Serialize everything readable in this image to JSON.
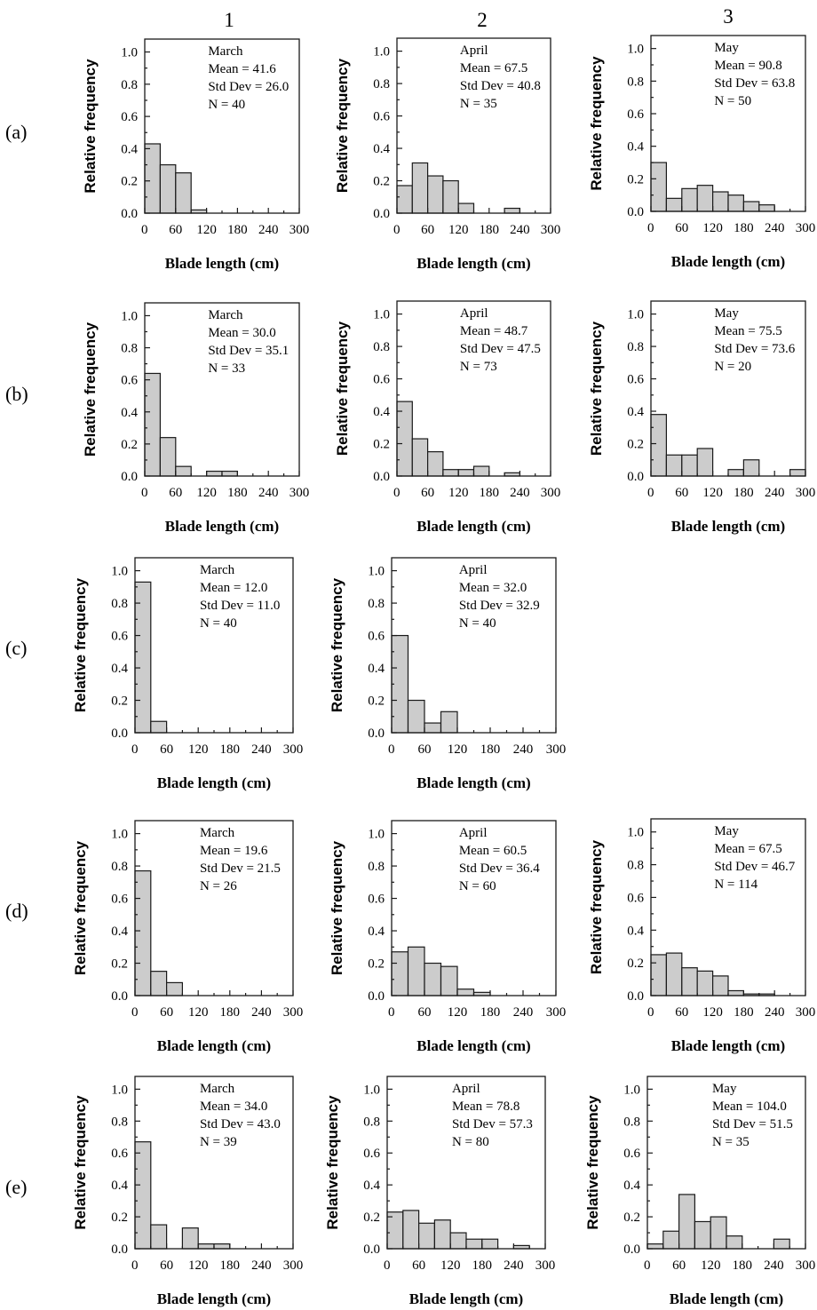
{
  "column_labels": [
    "1",
    "2",
    "3"
  ],
  "row_labels": [
    "(a)",
    "(b)",
    "(c)",
    "(d)",
    "(e)"
  ],
  "axis_text": {
    "ylabel": "Relative frequency",
    "xlabel": "Blade length (cm)",
    "y_ticks": [
      "0.0",
      "0.2",
      "0.4",
      "0.6",
      "0.8",
      "1.0"
    ],
    "x_ticks": [
      "0",
      "60",
      "120",
      "180",
      "240",
      "300"
    ]
  },
  "chart_data": [
    {
      "type": "bar",
      "row": "(a)",
      "column": "1",
      "annotation": [
        "March",
        "Mean = 41.6",
        "Std Dev = 26.0",
        "N = 40"
      ],
      "bin_width": 30,
      "x_range": [
        0,
        300
      ],
      "ylim": [
        0,
        1.08
      ],
      "values": [
        0.43,
        0.3,
        0.25,
        0.02,
        0,
        0,
        0,
        0,
        0,
        0
      ]
    },
    {
      "type": "bar",
      "row": "(a)",
      "column": "2",
      "annotation": [
        "April",
        "Mean = 67.5",
        "Std Dev = 40.8",
        "N = 35"
      ],
      "bin_width": 30,
      "x_range": [
        0,
        300
      ],
      "ylim": [
        0,
        1.08
      ],
      "values": [
        0.17,
        0.31,
        0.23,
        0.2,
        0.06,
        0,
        0,
        0.03,
        0,
        0
      ]
    },
    {
      "type": "bar",
      "row": "(a)",
      "column": "3",
      "annotation": [
        "May",
        "Mean = 90.8",
        "Std Dev = 63.8",
        "N = 50"
      ],
      "bin_width": 30,
      "x_range": [
        0,
        300
      ],
      "ylim": [
        0,
        1.08
      ],
      "values": [
        0.3,
        0.08,
        0.14,
        0.16,
        0.12,
        0.1,
        0.06,
        0.04,
        0,
        0
      ]
    },
    {
      "type": "bar",
      "row": "(b)",
      "column": "1",
      "annotation": [
        "March",
        "Mean = 30.0",
        "Std Dev = 35.1",
        "N = 33"
      ],
      "bin_width": 30,
      "x_range": [
        0,
        300
      ],
      "ylim": [
        0,
        1.08
      ],
      "values": [
        0.64,
        0.24,
        0.06,
        0,
        0.03,
        0.03,
        0,
        0,
        0,
        0
      ]
    },
    {
      "type": "bar",
      "row": "(b)",
      "column": "2",
      "annotation": [
        "April",
        "Mean = 48.7",
        "Std Dev = 47.5",
        "N = 73"
      ],
      "bin_width": 30,
      "x_range": [
        0,
        300
      ],
      "ylim": [
        0,
        1.08
      ],
      "values": [
        0.46,
        0.23,
        0.15,
        0.04,
        0.04,
        0.06,
        0,
        0.02,
        0,
        0
      ]
    },
    {
      "type": "bar",
      "row": "(b)",
      "column": "3",
      "annotation": [
        "May",
        "Mean = 75.5",
        "Std Dev = 73.6",
        "N = 20"
      ],
      "bin_width": 30,
      "x_range": [
        0,
        300
      ],
      "ylim": [
        0,
        1.08
      ],
      "values": [
        0.38,
        0.13,
        0.13,
        0.17,
        0,
        0.04,
        0.1,
        0,
        0,
        0.04
      ]
    },
    {
      "type": "bar",
      "row": "(c)",
      "column": "1",
      "annotation": [
        "March",
        "Mean = 12.0",
        "Std Dev = 11.0",
        "N = 40"
      ],
      "bin_width": 30,
      "x_range": [
        0,
        300
      ],
      "ylim": [
        0,
        1.08
      ],
      "values": [
        0.93,
        0.07,
        0,
        0,
        0,
        0,
        0,
        0,
        0,
        0
      ]
    },
    {
      "type": "bar",
      "row": "(c)",
      "column": "2",
      "annotation": [
        "April",
        "Mean = 32.0",
        "Std Dev = 32.9",
        "N = 40"
      ],
      "bin_width": 30,
      "x_range": [
        0,
        300
      ],
      "ylim": [
        0,
        1.08
      ],
      "values": [
        0.6,
        0.2,
        0.06,
        0.13,
        0,
        0,
        0,
        0,
        0,
        0
      ]
    },
    {
      "type": "bar",
      "row": "(d)",
      "column": "1",
      "annotation": [
        "March",
        "Mean = 19.6",
        "Std Dev = 21.5",
        "N = 26"
      ],
      "bin_width": 30,
      "x_range": [
        0,
        300
      ],
      "ylim": [
        0,
        1.08
      ],
      "values": [
        0.77,
        0.15,
        0.08,
        0,
        0,
        0,
        0,
        0,
        0,
        0
      ]
    },
    {
      "type": "bar",
      "row": "(d)",
      "column": "2",
      "annotation": [
        "April",
        "Mean = 60.5",
        "Std Dev = 36.4",
        "N = 60"
      ],
      "bin_width": 30,
      "x_range": [
        0,
        300
      ],
      "ylim": [
        0,
        1.08
      ],
      "values": [
        0.27,
        0.3,
        0.2,
        0.18,
        0.04,
        0.02,
        0,
        0,
        0,
        0
      ]
    },
    {
      "type": "bar",
      "row": "(d)",
      "column": "3",
      "annotation": [
        "May",
        "Mean = 67.5",
        "Std Dev = 46.7",
        "N = 114"
      ],
      "bin_width": 30,
      "x_range": [
        0,
        300
      ],
      "ylim": [
        0,
        1.08
      ],
      "values": [
        0.25,
        0.26,
        0.17,
        0.15,
        0.12,
        0.03,
        0.01,
        0.01,
        0,
        0
      ]
    },
    {
      "type": "bar",
      "row": "(e)",
      "column": "1",
      "annotation": [
        "March",
        "Mean = 34.0",
        "Std Dev = 43.0",
        "N = 39"
      ],
      "bin_width": 30,
      "x_range": [
        0,
        300
      ],
      "ylim": [
        0,
        1.08
      ],
      "values": [
        0.67,
        0.15,
        0,
        0.13,
        0.03,
        0.03,
        0,
        0,
        0,
        0
      ]
    },
    {
      "type": "bar",
      "row": "(e)",
      "column": "2",
      "annotation": [
        "April",
        "Mean = 78.8",
        "Std Dev = 57.3",
        "N = 80"
      ],
      "bin_width": 30,
      "x_range": [
        0,
        300
      ],
      "ylim": [
        0,
        1.08
      ],
      "values": [
        0.23,
        0.24,
        0.16,
        0.18,
        0.1,
        0.06,
        0.06,
        0,
        0.02,
        0
      ]
    },
    {
      "type": "bar",
      "row": "(e)",
      "column": "3",
      "annotation": [
        "May",
        "Mean = 104.0",
        "Std Dev = 51.5",
        "N = 35"
      ],
      "bin_width": 30,
      "x_range": [
        0,
        300
      ],
      "ylim": [
        0,
        1.08
      ],
      "values": [
        0.03,
        0.11,
        0.34,
        0.17,
        0.2,
        0.08,
        0,
        0,
        0.06,
        0
      ]
    }
  ]
}
